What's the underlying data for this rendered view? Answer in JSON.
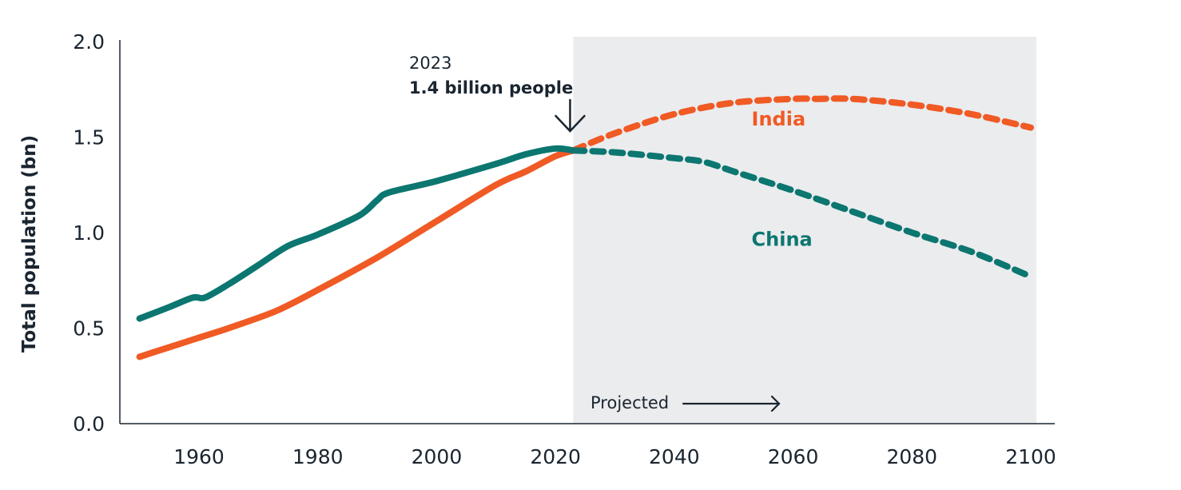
{
  "chart_data": {
    "type": "line",
    "title": "",
    "xlabel": "",
    "ylabel": "Total population (bn)",
    "xlim": [
      1947,
      2101
    ],
    "ylim": [
      0,
      2.0
    ],
    "grid": false,
    "x_ticks": [
      1960,
      1980,
      2000,
      2020,
      2040,
      2060,
      2080,
      2100
    ],
    "x_tick_labels": [
      "1960",
      "1980",
      "2000",
      "2020",
      "2040",
      "2060",
      "2080",
      "2100"
    ],
    "y_ticks": [
      0,
      0.5,
      1.0,
      1.5,
      2.0
    ],
    "y_tick_labels": [
      "0.0",
      "0.5",
      "1.0",
      "1.5",
      "2.0"
    ],
    "projection_start": 2023,
    "projection_end": 2100,
    "projection_label": "Projected",
    "annotation": {
      "year": "2023",
      "text": "1.4 billion people",
      "x": 2023,
      "y": 1.43
    },
    "series": [
      {
        "name": "India",
        "label": "India",
        "color": "#f05a24",
        "historical": {
          "x": [
            1950,
            1955,
            1960,
            1965,
            1973,
            1980,
            1990,
            2000,
            2010,
            2015,
            2020,
            2023
          ],
          "y": [
            0.35,
            0.4,
            0.45,
            0.5,
            0.59,
            0.7,
            0.87,
            1.06,
            1.25,
            1.32,
            1.4,
            1.43
          ]
        },
        "projected": {
          "x": [
            2023,
            2030,
            2040,
            2050,
            2060,
            2064,
            2070,
            2080,
            2090,
            2100
          ],
          "y": [
            1.43,
            1.52,
            1.62,
            1.68,
            1.7,
            1.7,
            1.7,
            1.67,
            1.62,
            1.55
          ]
        }
      },
      {
        "name": "China",
        "label": "China",
        "color": "#0c7670",
        "historical": {
          "x": [
            1950,
            1955,
            1959,
            1961,
            1965,
            1970,
            1975,
            1980,
            1987,
            1990,
            1992,
            2000,
            2010,
            2015,
            2020,
            2023
          ],
          "y": [
            0.55,
            0.61,
            0.66,
            0.66,
            0.73,
            0.83,
            0.93,
            0.99,
            1.09,
            1.17,
            1.21,
            1.27,
            1.36,
            1.41,
            1.44,
            1.43
          ]
        },
        "projected": {
          "x": [
            2023,
            2030,
            2040,
            2045,
            2050,
            2060,
            2070,
            2080,
            2090,
            2100
          ],
          "y": [
            1.43,
            1.42,
            1.39,
            1.37,
            1.32,
            1.22,
            1.11,
            1.0,
            0.9,
            0.77
          ]
        }
      }
    ]
  }
}
